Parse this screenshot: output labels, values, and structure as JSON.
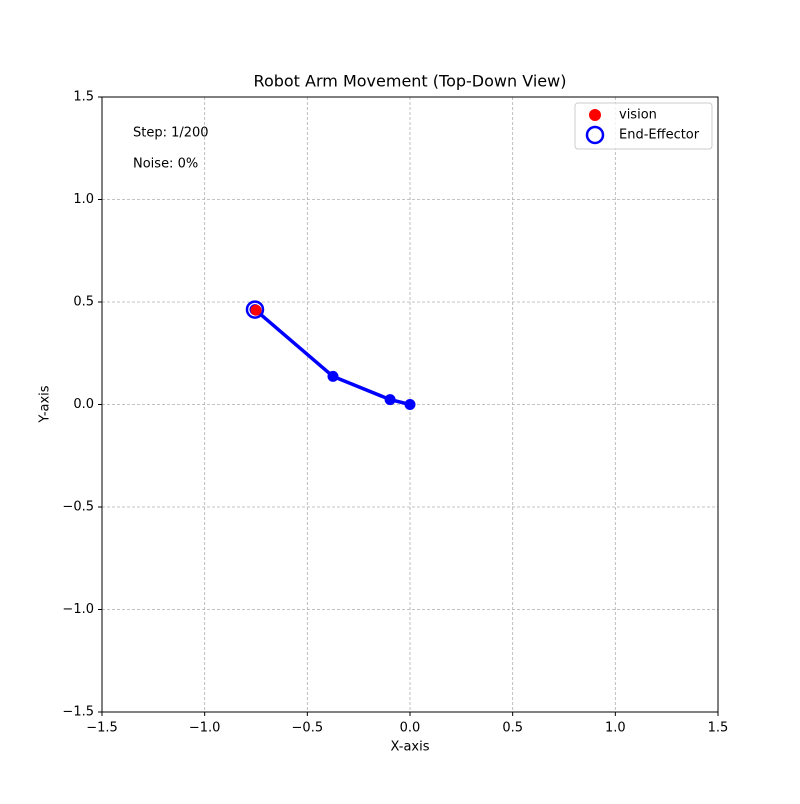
{
  "chart_data": {
    "type": "line",
    "title": "Robot Arm Movement (Top-Down View)",
    "x_label": "X-axis",
    "y_label": "Y-axis",
    "annotations": [
      "Step: 1/200",
      "Noise: 0%"
    ],
    "arm": {
      "color": "#0000ff",
      "x": [
        0,
        -0.097,
        -0.375,
        -0.755
      ],
      "y": [
        0,
        0.024,
        0.137,
        0.463
      ]
    },
    "series": [
      {
        "name": "vision",
        "color": "#ff0000",
        "x": [
          -0.75
        ],
        "values": [
          0.46
        ]
      },
      {
        "name": "End-Effector",
        "color": "#0000ff",
        "x": [
          -0.755
        ],
        "values": [
          0.463
        ]
      }
    ],
    "xlim": [
      -1.5,
      1.5
    ],
    "ylim": [
      -1.5,
      1.5
    ],
    "xticks": [
      {
        "value": -1.5,
        "label": "−1.5"
      },
      {
        "value": -1.0,
        "label": "−1.0"
      },
      {
        "value": -0.5,
        "label": "−0.5"
      },
      {
        "value": 0,
        "label": "0.0"
      },
      0.5,
      {
        "value": 1,
        "label": "1.0"
      },
      1.5
    ],
    "yticks": [
      {
        "value": -1.5,
        "label": "−1.5"
      },
      {
        "value": -1.0,
        "label": "−1.0"
      },
      {
        "value": -0.5,
        "label": "−0.5"
      },
      {
        "value": 0,
        "label": "0.0"
      },
      0.5,
      {
        "value": 1,
        "label": "1.0"
      },
      1.5
    ],
    "grid": true,
    "legend": "upper right"
  }
}
